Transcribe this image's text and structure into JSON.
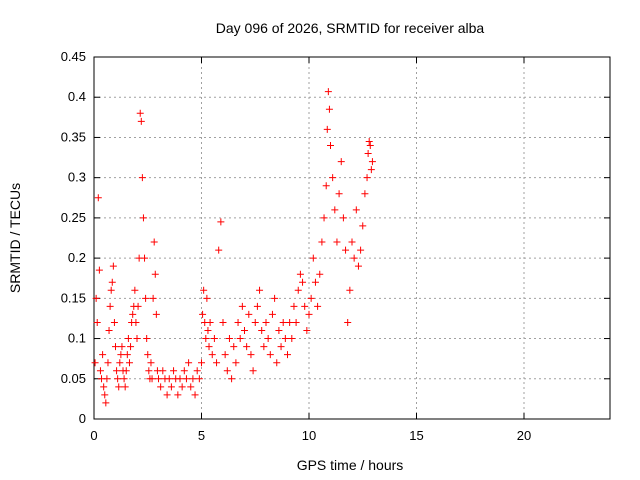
{
  "chart_data": {
    "type": "scatter",
    "title": "Day 096 of 2026, SRMTID for receiver alba",
    "xlabel": "GPS time / hours",
    "ylabel": "SRMTID / TECUs",
    "xlim": [
      0,
      24
    ],
    "ylim": [
      0,
      0.45
    ],
    "xticks": [
      0,
      5,
      10,
      15,
      20
    ],
    "yticks": [
      0,
      0.05,
      0.1,
      0.15,
      0.2,
      0.25,
      0.3,
      0.35,
      0.4,
      0.45
    ],
    "xtick_labels": [
      "0",
      "5",
      "10",
      "15",
      "20"
    ],
    "ytick_labels": [
      "0",
      "0.05",
      "0.1",
      "0.15",
      "0.2",
      "0.25",
      "0.3",
      "0.35",
      "0.4",
      "0.45"
    ],
    "grid": true,
    "marker": "+",
    "color": "#ff0000",
    "series": [
      {
        "name": "SRMTID",
        "points": [
          [
            0.05,
            0.07
          ],
          [
            0.1,
            0.15
          ],
          [
            0.15,
            0.12
          ],
          [
            0.2,
            0.275
          ],
          [
            0.25,
            0.185
          ],
          [
            0.3,
            0.06
          ],
          [
            0.35,
            0.05
          ],
          [
            0.4,
            0.08
          ],
          [
            0.45,
            0.04
          ],
          [
            0.5,
            0.03
          ],
          [
            0.55,
            0.02
          ],
          [
            0.6,
            0.05
          ],
          [
            0.65,
            0.07
          ],
          [
            0.7,
            0.11
          ],
          [
            0.75,
            0.14
          ],
          [
            0.8,
            0.16
          ],
          [
            0.85,
            0.17
          ],
          [
            0.9,
            0.19
          ],
          [
            0.95,
            0.12
          ],
          [
            1.0,
            0.09
          ],
          [
            1.05,
            0.06
          ],
          [
            1.1,
            0.05
          ],
          [
            1.15,
            0.04
          ],
          [
            1.2,
            0.07
          ],
          [
            1.25,
            0.08
          ],
          [
            1.3,
            0.09
          ],
          [
            1.35,
            0.06
          ],
          [
            1.4,
            0.05
          ],
          [
            1.45,
            0.04
          ],
          [
            1.5,
            0.06
          ],
          [
            1.55,
            0.08
          ],
          [
            1.6,
            0.1
          ],
          [
            1.65,
            0.07
          ],
          [
            1.7,
            0.09
          ],
          [
            1.75,
            0.12
          ],
          [
            1.8,
            0.13
          ],
          [
            1.85,
            0.14
          ],
          [
            1.9,
            0.16
          ],
          [
            1.95,
            0.12
          ],
          [
            2.0,
            0.1
          ],
          [
            2.05,
            0.14
          ],
          [
            2.1,
            0.2
          ],
          [
            2.15,
            0.38
          ],
          [
            2.2,
            0.37
          ],
          [
            2.25,
            0.3
          ],
          [
            2.3,
            0.25
          ],
          [
            2.35,
            0.2
          ],
          [
            2.4,
            0.15
          ],
          [
            2.45,
            0.1
          ],
          [
            2.5,
            0.08
          ],
          [
            2.55,
            0.06
          ],
          [
            2.6,
            0.05
          ],
          [
            2.65,
            0.07
          ],
          [
            2.7,
            0.05
          ],
          [
            2.75,
            0.15
          ],
          [
            2.8,
            0.22
          ],
          [
            2.85,
            0.18
          ],
          [
            2.9,
            0.13
          ],
          [
            2.95,
            0.06
          ],
          [
            3.0,
            0.05
          ],
          [
            3.1,
            0.04
          ],
          [
            3.2,
            0.06
          ],
          [
            3.3,
            0.05
          ],
          [
            3.4,
            0.03
          ],
          [
            3.5,
            0.05
          ],
          [
            3.6,
            0.04
          ],
          [
            3.7,
            0.06
          ],
          [
            3.8,
            0.05
          ],
          [
            3.9,
            0.03
          ],
          [
            4.0,
            0.05
          ],
          [
            4.1,
            0.04
          ],
          [
            4.2,
            0.06
          ],
          [
            4.3,
            0.05
          ],
          [
            4.4,
            0.07
          ],
          [
            4.5,
            0.04
          ],
          [
            4.6,
            0.05
          ],
          [
            4.7,
            0.03
          ],
          [
            4.8,
            0.06
          ],
          [
            4.9,
            0.05
          ],
          [
            5.0,
            0.07
          ],
          [
            5.05,
            0.13
          ],
          [
            5.1,
            0.16
          ],
          [
            5.15,
            0.12
          ],
          [
            5.2,
            0.1
          ],
          [
            5.25,
            0.15
          ],
          [
            5.3,
            0.11
          ],
          [
            5.35,
            0.09
          ],
          [
            5.4,
            0.12
          ],
          [
            5.5,
            0.08
          ],
          [
            5.6,
            0.1
          ],
          [
            5.7,
            0.07
          ],
          [
            5.8,
            0.21
          ],
          [
            5.9,
            0.245
          ],
          [
            6.0,
            0.12
          ],
          [
            6.1,
            0.08
          ],
          [
            6.2,
            0.06
          ],
          [
            6.3,
            0.1
          ],
          [
            6.4,
            0.05
          ],
          [
            6.5,
            0.09
          ],
          [
            6.6,
            0.07
          ],
          [
            6.7,
            0.12
          ],
          [
            6.8,
            0.1
          ],
          [
            6.9,
            0.14
          ],
          [
            7.0,
            0.11
          ],
          [
            7.1,
            0.09
          ],
          [
            7.2,
            0.13
          ],
          [
            7.3,
            0.08
          ],
          [
            7.4,
            0.06
          ],
          [
            7.5,
            0.12
          ],
          [
            7.6,
            0.14
          ],
          [
            7.7,
            0.16
          ],
          [
            7.8,
            0.11
          ],
          [
            7.9,
            0.09
          ],
          [
            8.0,
            0.12
          ],
          [
            8.1,
            0.1
          ],
          [
            8.2,
            0.08
          ],
          [
            8.3,
            0.13
          ],
          [
            8.4,
            0.15
          ],
          [
            8.5,
            0.07
          ],
          [
            8.6,
            0.11
          ],
          [
            8.7,
            0.09
          ],
          [
            8.8,
            0.12
          ],
          [
            8.9,
            0.1
          ],
          [
            9.0,
            0.08
          ],
          [
            9.1,
            0.12
          ],
          [
            9.2,
            0.1
          ],
          [
            9.3,
            0.14
          ],
          [
            9.4,
            0.12
          ],
          [
            9.5,
            0.16
          ],
          [
            9.6,
            0.18
          ],
          [
            9.7,
            0.17
          ],
          [
            9.8,
            0.14
          ],
          [
            9.9,
            0.11
          ],
          [
            10.0,
            0.13
          ],
          [
            10.1,
            0.15
          ],
          [
            10.2,
            0.2
          ],
          [
            10.3,
            0.17
          ],
          [
            10.4,
            0.14
          ],
          [
            10.5,
            0.18
          ],
          [
            10.6,
            0.22
          ],
          [
            10.7,
            0.25
          ],
          [
            10.8,
            0.29
          ],
          [
            10.85,
            0.36
          ],
          [
            10.9,
            0.407
          ],
          [
            10.95,
            0.385
          ],
          [
            11.0,
            0.34
          ],
          [
            11.1,
            0.3
          ],
          [
            11.2,
            0.26
          ],
          [
            11.3,
            0.22
          ],
          [
            11.4,
            0.28
          ],
          [
            11.5,
            0.32
          ],
          [
            11.6,
            0.25
          ],
          [
            11.7,
            0.21
          ],
          [
            11.8,
            0.12
          ],
          [
            11.9,
            0.16
          ],
          [
            12.0,
            0.22
          ],
          [
            12.1,
            0.2
          ],
          [
            12.2,
            0.26
          ],
          [
            12.3,
            0.19
          ],
          [
            12.4,
            0.21
          ],
          [
            12.5,
            0.24
          ],
          [
            12.6,
            0.28
          ],
          [
            12.7,
            0.3
          ],
          [
            12.75,
            0.33
          ],
          [
            12.8,
            0.345
          ],
          [
            12.85,
            0.34
          ],
          [
            12.9,
            0.31
          ],
          [
            12.95,
            0.32
          ]
        ]
      }
    ]
  }
}
